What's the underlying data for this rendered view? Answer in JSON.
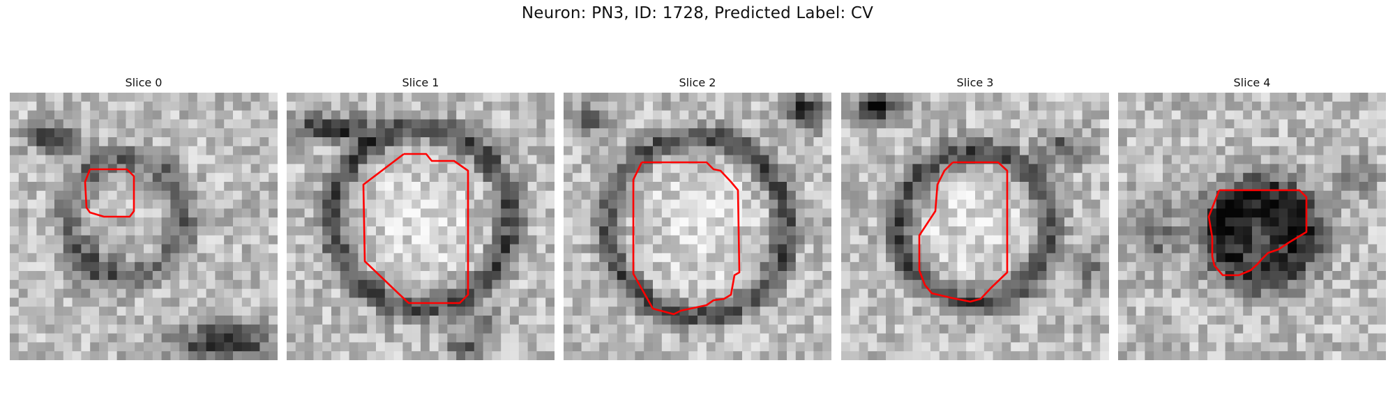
{
  "title": "Neuron: PN3, ID: 1728, Predicted Label: CV",
  "contour_color": "#ff0000",
  "colormap": "gray",
  "slices": [
    {
      "title": "Slice 0",
      "texture": "small ring with dark blob upper-left and dark band lower-right"
    },
    {
      "title": "Slice 1",
      "texture": "large dark ring with bright interior"
    },
    {
      "title": "Slice 2",
      "texture": "large dark ring with bright interior"
    },
    {
      "title": "Slice 3",
      "texture": "dark ring with bright interior, dark blob upper-left"
    },
    {
      "title": "Slice 4",
      "texture": "dark irregular region in center"
    }
  ]
}
